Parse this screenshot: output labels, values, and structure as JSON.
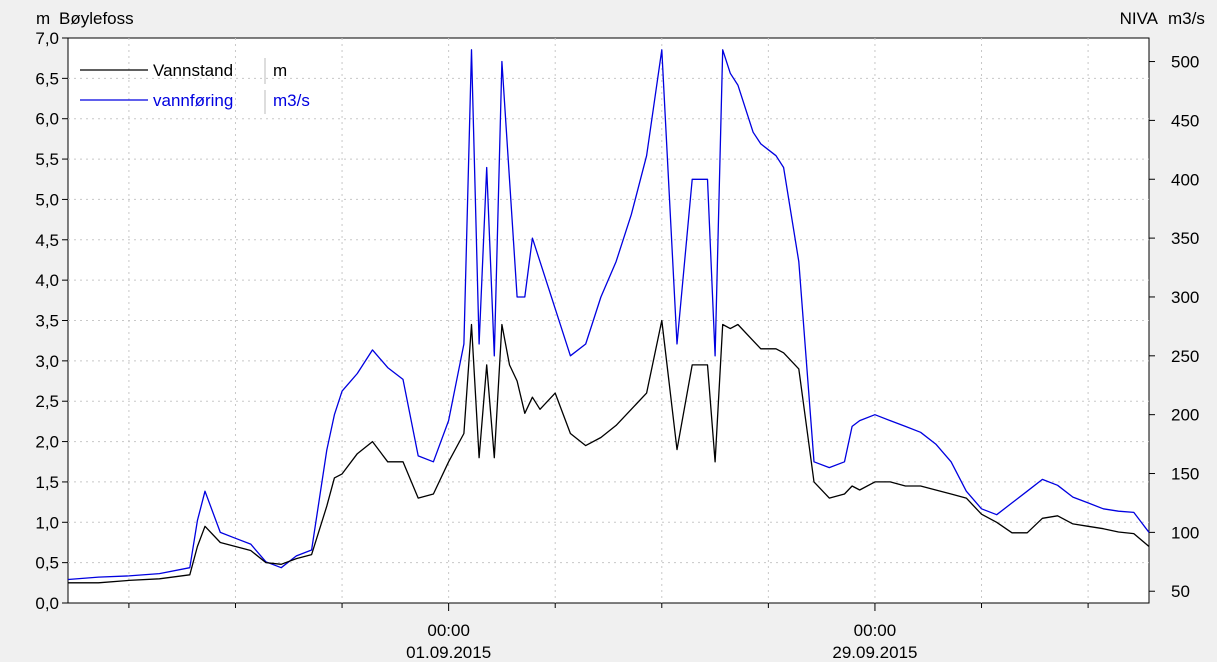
{
  "chart_data": {
    "type": "line",
    "title": "Bøylefoss",
    "left_axis_unit": "m",
    "right_axis_label": "NIVA",
    "right_axis_unit": "m3/s",
    "y_left_lim": [
      0,
      7
    ],
    "y_right_lim": [
      40,
      520
    ],
    "y_left_ticks": [
      "0,0",
      "0,5",
      "1,0",
      "1,5",
      "2,0",
      "2,5",
      "3,0",
      "3,5",
      "4,0",
      "4,5",
      "5,0",
      "5,5",
      "6,0",
      "6,5",
      "7,0"
    ],
    "y_right_ticks": [
      "50",
      "100",
      "150",
      "200",
      "250",
      "300",
      "350",
      "400",
      "450",
      "500"
    ],
    "x_tick_labels": [
      {
        "time": "00:00",
        "date": "01.09.2015"
      },
      {
        "time": "00:00",
        "date": "29.09.2015"
      }
    ],
    "grid": true,
    "legend_position": "top-left",
    "x_start": "2015-08-07",
    "x_end": "2015-10-17",
    "series": [
      {
        "name": "Vannstand",
        "unit": "m",
        "axis": "left",
        "color": "#000000",
        "x": [
          "2015-08-07",
          "2015-08-09",
          "2015-08-11",
          "2015-08-13",
          "2015-08-15",
          "2015-08-15T12:00",
          "2015-08-16",
          "2015-08-17",
          "2015-08-18",
          "2015-08-19",
          "2015-08-20",
          "2015-08-21",
          "2015-08-22",
          "2015-08-23",
          "2015-08-24",
          "2015-08-24T12:00",
          "2015-08-25",
          "2015-08-26",
          "2015-08-27",
          "2015-08-28",
          "2015-08-29",
          "2015-08-30",
          "2015-08-31",
          "2015-09-01",
          "2015-09-02",
          "2015-09-02T12:00",
          "2015-09-03",
          "2015-09-03T12:00",
          "2015-09-04",
          "2015-09-04T12:00",
          "2015-09-05",
          "2015-09-05T12:00",
          "2015-09-06",
          "2015-09-06T12:00",
          "2015-09-07",
          "2015-09-08",
          "2015-09-09",
          "2015-09-10",
          "2015-09-11",
          "2015-09-12",
          "2015-09-13",
          "2015-09-14",
          "2015-09-15",
          "2015-09-16",
          "2015-09-17",
          "2015-09-18",
          "2015-09-18T12:00",
          "2015-09-19",
          "2015-09-19T12:00",
          "2015-09-20",
          "2015-09-21",
          "2015-09-21T12:00",
          "2015-09-22",
          "2015-09-22T12:00",
          "2015-09-23",
          "2015-09-24",
          "2015-09-25",
          "2015-09-26",
          "2015-09-27",
          "2015-09-27T12:00",
          "2015-09-28",
          "2015-09-29",
          "2015-09-30",
          "2015-10-01",
          "2015-10-02",
          "2015-10-03",
          "2015-10-04",
          "2015-10-05",
          "2015-10-06",
          "2015-10-07",
          "2015-10-08",
          "2015-10-09",
          "2015-10-10",
          "2015-10-11",
          "2015-10-12",
          "2015-10-13",
          "2015-10-14",
          "2015-10-15",
          "2015-10-16",
          "2015-10-17"
        ],
        "y": [
          0.25,
          0.25,
          0.28,
          0.3,
          0.35,
          0.7,
          0.95,
          0.75,
          0.7,
          0.65,
          0.5,
          0.48,
          0.55,
          0.6,
          1.2,
          1.55,
          1.6,
          1.85,
          2.0,
          1.75,
          1.75,
          1.3,
          1.35,
          1.75,
          2.1,
          3.45,
          1.8,
          2.95,
          1.8,
          3.45,
          2.95,
          2.75,
          2.35,
          2.55,
          2.4,
          2.6,
          2.1,
          1.95,
          2.05,
          2.2,
          2.4,
          2.6,
          3.5,
          1.9,
          2.95,
          2.95,
          1.75,
          3.45,
          3.4,
          3.45,
          3.25,
          3.15,
          3.15,
          3.15,
          3.1,
          2.9,
          1.5,
          1.3,
          1.35,
          1.45,
          1.4,
          1.5,
          1.5,
          1.45,
          1.45,
          1.4,
          1.35,
          1.3,
          1.1,
          1.0,
          0.87,
          0.87,
          1.05,
          1.08,
          0.98,
          0.95,
          0.92,
          0.88,
          0.86,
          0.7
        ]
      },
      {
        "name": "vannføring",
        "unit": "m3/s",
        "axis": "right",
        "color": "#0000e0",
        "x": [
          "2015-08-07",
          "2015-08-09",
          "2015-08-11",
          "2015-08-13",
          "2015-08-15",
          "2015-08-15T12:00",
          "2015-08-16",
          "2015-08-17",
          "2015-08-18",
          "2015-08-19",
          "2015-08-20",
          "2015-08-21",
          "2015-08-22",
          "2015-08-23",
          "2015-08-24",
          "2015-08-24T12:00",
          "2015-08-25",
          "2015-08-26",
          "2015-08-27",
          "2015-08-28",
          "2015-08-29",
          "2015-08-30",
          "2015-08-31",
          "2015-09-01",
          "2015-09-02",
          "2015-09-02T12:00",
          "2015-09-03",
          "2015-09-03T12:00",
          "2015-09-04",
          "2015-09-04T12:00",
          "2015-09-05",
          "2015-09-05T12:00",
          "2015-09-06",
          "2015-09-06T12:00",
          "2015-09-07",
          "2015-09-08",
          "2015-09-09",
          "2015-09-10",
          "2015-09-11",
          "2015-09-12",
          "2015-09-13",
          "2015-09-14",
          "2015-09-15",
          "2015-09-16",
          "2015-09-17",
          "2015-09-18",
          "2015-09-18T12:00",
          "2015-09-19",
          "2015-09-19T12:00",
          "2015-09-20",
          "2015-09-21",
          "2015-09-21T12:00",
          "2015-09-22",
          "2015-09-22T12:00",
          "2015-09-23",
          "2015-09-24",
          "2015-09-25",
          "2015-09-26",
          "2015-09-27",
          "2015-09-27T12:00",
          "2015-09-28",
          "2015-09-29",
          "2015-09-30",
          "2015-10-01",
          "2015-10-02",
          "2015-10-03",
          "2015-10-04",
          "2015-10-05",
          "2015-10-06",
          "2015-10-07",
          "2015-10-08",
          "2015-10-09",
          "2015-10-10",
          "2015-10-11",
          "2015-10-12",
          "2015-10-13",
          "2015-10-14",
          "2015-10-15",
          "2015-10-16",
          "2015-10-17"
        ],
        "y": [
          60,
          62,
          63,
          65,
          70,
          110,
          135,
          100,
          95,
          90,
          75,
          70,
          80,
          85,
          170,
          200,
          220,
          235,
          255,
          240,
          230,
          165,
          160,
          195,
          260,
          510,
          260,
          410,
          250,
          500,
          400,
          300,
          300,
          350,
          330,
          290,
          250,
          260,
          300,
          330,
          370,
          420,
          510,
          260,
          400,
          400,
          250,
          510,
          490,
          480,
          440,
          430,
          425,
          420,
          410,
          330,
          160,
          155,
          160,
          190,
          195,
          200,
          195,
          190,
          185,
          175,
          160,
          135,
          120,
          115,
          125,
          135,
          145,
          140,
          130,
          125,
          120,
          118,
          117,
          100
        ]
      }
    ]
  }
}
